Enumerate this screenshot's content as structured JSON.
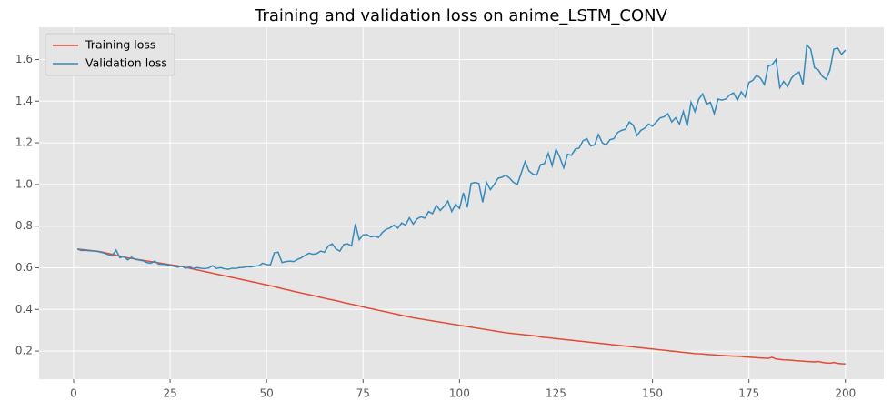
{
  "chart_data": {
    "type": "line",
    "title": "Training and validation loss on anime_LSTM_CONV",
    "x": [
      1,
      2,
      3,
      4,
      5,
      6,
      7,
      8,
      9,
      10,
      11,
      12,
      13,
      14,
      15,
      16,
      17,
      18,
      19,
      20,
      21,
      22,
      23,
      24,
      25,
      26,
      27,
      28,
      29,
      30,
      31,
      32,
      33,
      34,
      35,
      36,
      37,
      38,
      39,
      40,
      41,
      42,
      43,
      44,
      45,
      46,
      47,
      48,
      49,
      50,
      51,
      52,
      53,
      54,
      55,
      56,
      57,
      58,
      59,
      60,
      61,
      62,
      63,
      64,
      65,
      66,
      67,
      68,
      69,
      70,
      71,
      72,
      73,
      74,
      75,
      76,
      77,
      78,
      79,
      80,
      81,
      82,
      83,
      84,
      85,
      86,
      87,
      88,
      89,
      90,
      91,
      92,
      93,
      94,
      95,
      96,
      97,
      98,
      99,
      100,
      101,
      102,
      103,
      104,
      105,
      106,
      107,
      108,
      109,
      110,
      111,
      112,
      113,
      114,
      115,
      116,
      117,
      118,
      119,
      120,
      121,
      122,
      123,
      124,
      125,
      126,
      127,
      128,
      129,
      130,
      131,
      132,
      133,
      134,
      135,
      136,
      137,
      138,
      139,
      140,
      141,
      142,
      143,
      144,
      145,
      146,
      147,
      148,
      149,
      150,
      151,
      152,
      153,
      154,
      155,
      156,
      157,
      158,
      159,
      160,
      161,
      162,
      163,
      164,
      165,
      166,
      167,
      168,
      169,
      170,
      171,
      172,
      173,
      174,
      175,
      176,
      177,
      178,
      179,
      180,
      181,
      182,
      183,
      184,
      185,
      186,
      187,
      188,
      189,
      190,
      191,
      192,
      193,
      194,
      195,
      196,
      197,
      198,
      199,
      200
    ],
    "series": [
      {
        "name": "Training loss",
        "color": "#E24A33",
        "values": [
          0.69,
          0.688,
          0.686,
          0.684,
          0.682,
          0.68,
          0.677,
          0.673,
          0.669,
          0.665,
          0.66,
          0.656,
          0.652,
          0.648,
          0.645,
          0.642,
          0.639,
          0.636,
          0.633,
          0.63,
          0.627,
          0.624,
          0.621,
          0.618,
          0.615,
          0.612,
          0.609,
          0.606,
          0.602,
          0.598,
          0.594,
          0.59,
          0.586,
          0.582,
          0.578,
          0.574,
          0.57,
          0.566,
          0.562,
          0.558,
          0.554,
          0.55,
          0.546,
          0.542,
          0.538,
          0.534,
          0.53,
          0.526,
          0.522,
          0.518,
          0.514,
          0.51,
          0.505,
          0.5,
          0.496,
          0.492,
          0.487,
          0.483,
          0.479,
          0.475,
          0.471,
          0.467,
          0.463,
          0.458,
          0.454,
          0.45,
          0.446,
          0.442,
          0.438,
          0.433,
          0.429,
          0.425,
          0.421,
          0.417,
          0.412,
          0.408,
          0.404,
          0.4,
          0.396,
          0.392,
          0.388,
          0.384,
          0.38,
          0.376,
          0.372,
          0.368,
          0.364,
          0.36,
          0.357,
          0.354,
          0.351,
          0.348,
          0.345,
          0.342,
          0.339,
          0.336,
          0.333,
          0.33,
          0.327,
          0.324,
          0.321,
          0.318,
          0.315,
          0.312,
          0.309,
          0.306,
          0.303,
          0.3,
          0.297,
          0.294,
          0.291,
          0.288,
          0.286,
          0.284,
          0.282,
          0.28,
          0.278,
          0.276,
          0.274,
          0.272,
          0.268,
          0.266,
          0.264,
          0.262,
          0.26,
          0.258,
          0.256,
          0.254,
          0.252,
          0.25,
          0.248,
          0.246,
          0.244,
          0.242,
          0.24,
          0.238,
          0.236,
          0.234,
          0.232,
          0.23,
          0.228,
          0.226,
          0.224,
          0.222,
          0.22,
          0.218,
          0.216,
          0.214,
          0.212,
          0.21,
          0.208,
          0.206,
          0.204,
          0.202,
          0.2,
          0.198,
          0.196,
          0.194,
          0.192,
          0.19,
          0.188,
          0.187,
          0.186,
          0.184,
          0.183,
          0.182,
          0.18,
          0.179,
          0.178,
          0.177,
          0.176,
          0.175,
          0.174,
          0.172,
          0.171,
          0.17,
          0.168,
          0.167,
          0.166,
          0.165,
          0.17,
          0.162,
          0.16,
          0.158,
          0.157,
          0.156,
          0.154,
          0.153,
          0.152,
          0.15,
          0.149,
          0.148,
          0.15,
          0.146,
          0.143,
          0.142,
          0.145,
          0.141,
          0.139,
          0.138
        ]
      },
      {
        "name": "Validation loss",
        "color": "#348ABD",
        "values": [
          0.69,
          0.683,
          0.684,
          0.682,
          0.681,
          0.679,
          0.675,
          0.67,
          0.663,
          0.658,
          0.685,
          0.648,
          0.655,
          0.638,
          0.65,
          0.64,
          0.637,
          0.634,
          0.625,
          0.622,
          0.632,
          0.618,
          0.617,
          0.615,
          0.612,
          0.607,
          0.603,
          0.608,
          0.598,
          0.604,
          0.597,
          0.601,
          0.598,
          0.596,
          0.599,
          0.61,
          0.597,
          0.601,
          0.596,
          0.593,
          0.598,
          0.597,
          0.601,
          0.602,
          0.605,
          0.604,
          0.608,
          0.61,
          0.622,
          0.615,
          0.614,
          0.672,
          0.675,
          0.625,
          0.63,
          0.632,
          0.63,
          0.64,
          0.648,
          0.66,
          0.67,
          0.665,
          0.668,
          0.68,
          0.675,
          0.705,
          0.715,
          0.69,
          0.68,
          0.712,
          0.715,
          0.705,
          0.81,
          0.735,
          0.758,
          0.76,
          0.748,
          0.752,
          0.745,
          0.77,
          0.785,
          0.792,
          0.805,
          0.79,
          0.815,
          0.805,
          0.84,
          0.81,
          0.835,
          0.845,
          0.838,
          0.87,
          0.86,
          0.9,
          0.875,
          0.895,
          0.92,
          0.87,
          0.905,
          0.885,
          0.96,
          0.89,
          1.005,
          1.01,
          1.005,
          0.915,
          1.01,
          0.975,
          1.0,
          1.03,
          1.035,
          1.045,
          1.03,
          1.01,
          1.0,
          1.055,
          1.11,
          1.065,
          1.05,
          1.045,
          1.095,
          1.1,
          1.15,
          1.09,
          1.17,
          1.13,
          1.08,
          1.145,
          1.14,
          1.17,
          1.175,
          1.21,
          1.22,
          1.185,
          1.19,
          1.24,
          1.2,
          1.19,
          1.215,
          1.22,
          1.25,
          1.26,
          1.265,
          1.3,
          1.285,
          1.235,
          1.26,
          1.27,
          1.29,
          1.28,
          1.3,
          1.32,
          1.325,
          1.34,
          1.3,
          1.32,
          1.29,
          1.35,
          1.28,
          1.395,
          1.35,
          1.41,
          1.435,
          1.385,
          1.395,
          1.34,
          1.41,
          1.405,
          1.41,
          1.43,
          1.44,
          1.405,
          1.445,
          1.42,
          1.49,
          1.5,
          1.525,
          1.51,
          1.48,
          1.57,
          1.575,
          1.6,
          1.465,
          1.495,
          1.47,
          1.51,
          1.53,
          1.54,
          1.48,
          1.67,
          1.65,
          1.56,
          1.55,
          1.52,
          1.505,
          1.55,
          1.65,
          1.655,
          1.625,
          1.645
        ]
      }
    ],
    "xlim": [
      -8.95,
      209.95
    ],
    "xticks": [
      0,
      25,
      50,
      75,
      100,
      125,
      150,
      175,
      200
    ],
    "ylim": [
      0.065,
      1.755
    ],
    "yticks": [
      0.2,
      0.4,
      0.6,
      0.8,
      {
        "value": 1,
        "label": "1.0"
      },
      1.2,
      1.4,
      1.6
    ],
    "grid": true,
    "legend": "upper left"
  }
}
